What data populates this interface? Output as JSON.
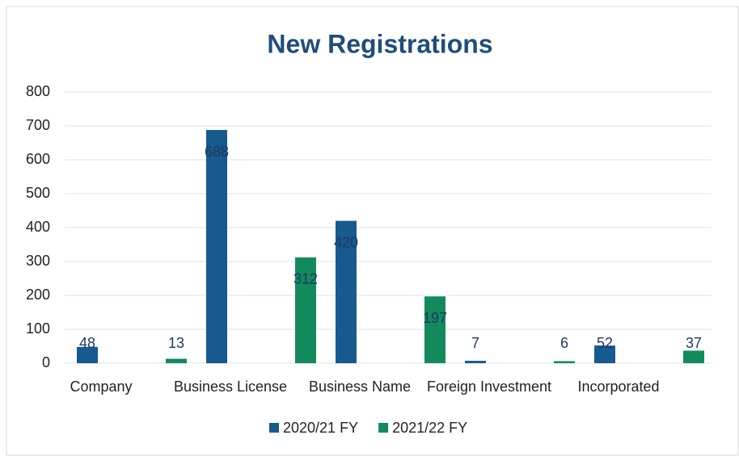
{
  "chart_data": {
    "type": "bar",
    "title": "New Registrations",
    "categories": [
      "Company",
      "Business License",
      "Business Name",
      "Foreign Investment",
      "Incorporated"
    ],
    "series": [
      {
        "name": "2020/21 FY",
        "color": "#165a8e",
        "values": [
          48,
          688,
          420,
          7,
          52
        ]
      },
      {
        "name": "2021/22 FY",
        "color": "#128a5c",
        "values": [
          13,
          312,
          197,
          6,
          37
        ]
      }
    ],
    "ylim": [
      0,
      800
    ],
    "yticks": [
      0,
      100,
      200,
      300,
      400,
      500,
      600,
      700,
      800
    ],
    "grid": true,
    "legend": "bottom"
  }
}
